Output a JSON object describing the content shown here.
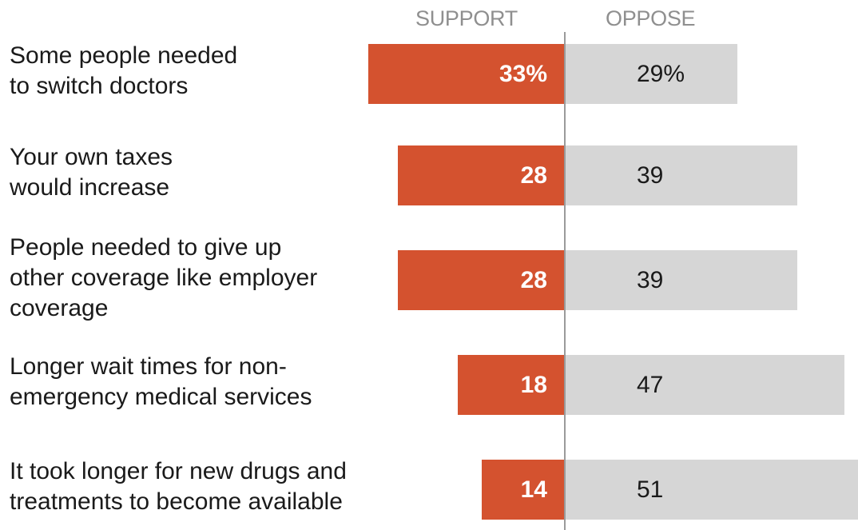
{
  "chart_data": {
    "type": "bar",
    "orientation": "horizontal-diverging",
    "columns": {
      "support": "SUPPORT",
      "oppose": "OPPOSE"
    },
    "categories": [
      "Some people needed\nto switch doctors",
      "Your own taxes\nwould increase",
      "People needed to give up\nother coverage like employer\ncoverage",
      "Longer wait times for non-\nemergency medical services",
      "It took longer for new drugs and\ntreatments to become available"
    ],
    "series": [
      {
        "name": "SUPPORT",
        "values": [
          33,
          28,
          28,
          18,
          14
        ],
        "labels": [
          "33%",
          "28",
          "28",
          "18",
          "14"
        ],
        "color": "#d4522f"
      },
      {
        "name": "OPPOSE",
        "values": [
          29,
          39,
          39,
          47,
          51
        ],
        "labels": [
          "29%",
          "39",
          "39",
          "47",
          "51"
        ],
        "color": "#d6d6d6"
      }
    ],
    "unit": "%",
    "grid": false,
    "legend": "none"
  }
}
